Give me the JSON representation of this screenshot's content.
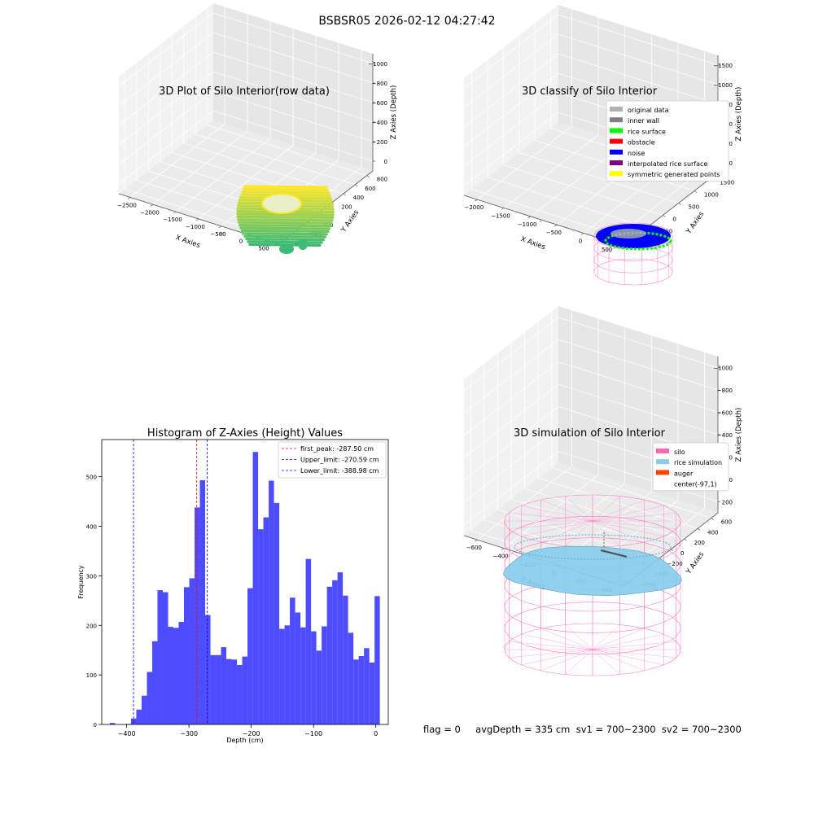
{
  "figure": {
    "suptitle": "BSBSR05 2026-02-12 04:27:42",
    "footer": "flag = 0     avgDepth = 335 cm  sv1 = 700~2300  sv2 = 700~2300"
  },
  "colors": {
    "original_data": "#b0b0b0",
    "inner_wall": "#808080",
    "rice_surface": "#00ff00",
    "obstacle": "#ff0000",
    "noise": "#0000ff",
    "interpolated_rice_surface": "#800080",
    "symmetric_generated_points": "#ffff00",
    "silo": "#ff69b4",
    "rice_simulation": "#87ceeb",
    "auger": "#ff4500",
    "histogram_bar": "#4d4dff",
    "first_peak_line": "#ff0000",
    "limit_line": "#0000ff",
    "viridis_low": "#3cbb75",
    "viridis_high": "#fde725"
  },
  "chart_data": [
    {
      "type": "scatter",
      "title": "3D Plot of Silo Interior(row data)",
      "xlabel": "X Axies",
      "ylabel": "Y Axies",
      "zlabel": "Z Axies (Depth)",
      "x_ticks": [
        "−2500",
        "−2000",
        "−1500",
        "−1000",
        "−500",
        "0",
        "500"
      ],
      "y_ticks": [
        "−600",
        "−400",
        "−200",
        "0",
        "200",
        "400",
        "600",
        "800"
      ],
      "z_ticks": [
        "0",
        "−200",
        "−400",
        "−600",
        "−800",
        "−1000"
      ],
      "colormap": "viridis",
      "grid": true
    },
    {
      "type": "scatter",
      "title": "3D classify of Silo Interior",
      "xlabel": "X Axies",
      "ylabel": "Y Axies",
      "zlabel": "Z Axies (Depth)",
      "x_ticks": [
        "−2000",
        "−1500",
        "−1000",
        "−500",
        "0",
        "500"
      ],
      "y_ticks": [
        "−1000",
        "−500",
        "0",
        "500",
        "1000",
        "1500"
      ],
      "z_ticks": [
        "1000",
        "500",
        "0",
        "−500",
        "−1000",
        "−1500"
      ],
      "legend": [
        "original data",
        "inner wall",
        "rice surface",
        "obstacle",
        "noise",
        "interpolated rice surface",
        "symmetric generated points"
      ],
      "legend_position": "top-right",
      "grid": true
    },
    {
      "type": "bar",
      "title": "Histogram of Z-Axies (Height) Values",
      "xlabel": "Depth (cm)",
      "ylabel": "Frequency",
      "xlim": [
        -440,
        20
      ],
      "ylim": [
        0,
        575
      ],
      "x_ticks": [
        -400,
        -300,
        -200,
        -100,
        0
      ],
      "x_tick_labels": [
        "−400",
        "−300",
        "−200",
        "−100",
        "0"
      ],
      "y_ticks": [
        0,
        100,
        200,
        300,
        400,
        500
      ],
      "bin_start": -427,
      "bin_width": 8.5,
      "values": [
        3,
        0,
        0,
        1,
        12,
        30,
        58,
        106,
        168,
        271,
        267,
        197,
        195,
        207,
        277,
        295,
        438,
        493,
        221,
        140,
        140,
        156,
        132,
        131,
        120,
        137,
        275,
        550,
        394,
        418,
        492,
        447,
        193,
        200,
        256,
        226,
        196,
        334,
        188,
        149,
        198,
        278,
        291,
        307,
        260,
        185,
        131,
        138,
        154,
        125,
        259
      ],
      "vlines": [
        {
          "label": "first_peak: -287.50 cm",
          "x": -287.5,
          "color": "#ff0000"
        },
        {
          "label": "Upper_limit: -270.59 cm",
          "x": -270.59,
          "color": "#0000ff"
        },
        {
          "label": "Lower_limit: -388.98 cm",
          "x": -388.98,
          "color": "#0000ff"
        }
      ],
      "legend_position": "top-right"
    },
    {
      "type": "surface",
      "title": "3D simulation of Silo Interior",
      "xlabel": "X Axies",
      "ylabel": "Y Axies",
      "zlabel": "Z Axies (Depth)",
      "x_ticks": [
        "−600",
        "−400",
        "−200",
        "0",
        "200",
        "400"
      ],
      "y_ticks": [
        "−600",
        "−400",
        "−200",
        "0",
        "200",
        "400",
        "600"
      ],
      "z_ticks": [
        "200",
        "0",
        "−200",
        "−400",
        "−600",
        "−800",
        "−1000"
      ],
      "legend": [
        "silo",
        "rice simulation",
        "auger",
        "center(-97,1)"
      ],
      "legend_position": "top-right",
      "grid": true
    }
  ]
}
